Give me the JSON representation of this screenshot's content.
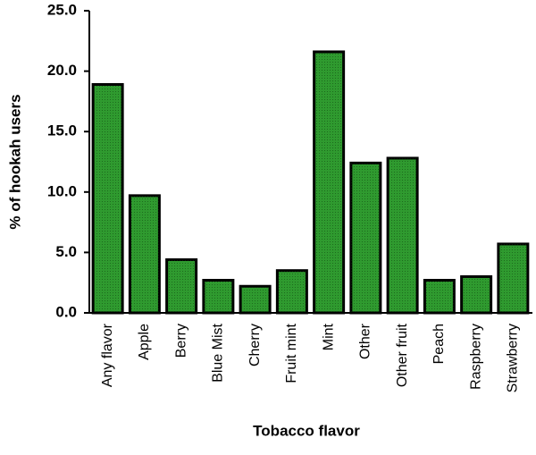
{
  "chart_data": {
    "type": "bar",
    "categories": [
      "Any flavor",
      "Apple",
      "Berry",
      "Blue Mist",
      "Cherry",
      "Fruit mint",
      "Mint",
      "Other",
      "Other fruit",
      "Peach",
      "Raspberry",
      "Strawberry"
    ],
    "values": [
      18.9,
      9.7,
      4.4,
      2.7,
      2.2,
      3.5,
      21.6,
      12.4,
      12.8,
      2.7,
      3.0,
      5.7
    ],
    "color": "#2f9a2f",
    "ylim": [
      0,
      25
    ],
    "yticks": [
      {
        "value": 0,
        "label": "0.0"
      },
      {
        "value": 5,
        "label": "5.0"
      },
      {
        "value": 10,
        "label": "10.0"
      },
      {
        "value": 15,
        "label": "15.0"
      },
      {
        "value": 20,
        "label": "20.0"
      },
      {
        "value": 25,
        "label": "25.0"
      }
    ],
    "y_label": "% of hookah users",
    "x_label": "Tobacco flavor",
    "grid": false
  }
}
